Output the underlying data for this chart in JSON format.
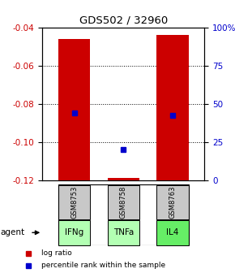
{
  "title": "GDS502 / 32960",
  "samples": [
    "GSM8753",
    "GSM8758",
    "GSM8763"
  ],
  "agents": [
    "IFNg",
    "TNFa",
    "IL4"
  ],
  "bar_bottoms": [
    -0.12,
    -0.12,
    -0.12
  ],
  "bar_tops": [
    -0.046,
    -0.119,
    -0.044
  ],
  "percentile_values": [
    -0.085,
    -0.104,
    -0.086
  ],
  "ymin": -0.12,
  "ymax": -0.04,
  "yticks_left": [
    -0.04,
    -0.06,
    -0.08,
    -0.1,
    -0.12
  ],
  "yticks_right_pct": [
    "100%",
    "75",
    "50",
    "25",
    "0"
  ],
  "yticks_right_val": [
    -0.04,
    -0.06,
    -0.08,
    -0.1,
    -0.12
  ],
  "bar_color": "#cc0000",
  "blue_marker_color": "#0000cc",
  "label_color_left": "#cc0000",
  "label_color_right": "#0000cc",
  "sample_bg": "#c8c8c8",
  "agent_bg_colors": [
    "#b3ffb3",
    "#b3ffb3",
    "#66ee66"
  ],
  "legend_log_ratio": "log ratio",
  "legend_percentile": "percentile rank within the sample",
  "agent_label": "agent"
}
